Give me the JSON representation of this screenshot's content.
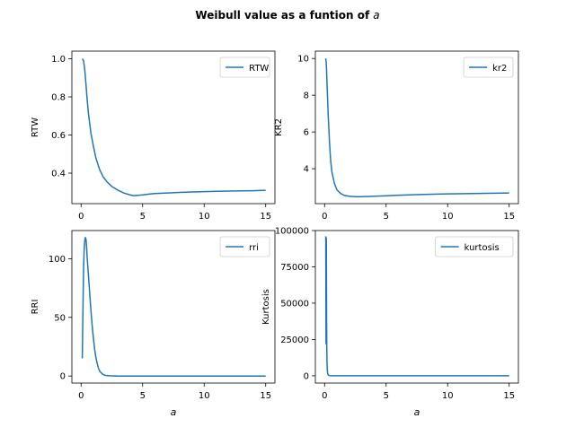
{
  "figure": {
    "title": "Weibull value as a funtion of",
    "title_var": "a",
    "series_color": "#1f77b4"
  },
  "chart_data": [
    {
      "type": "line",
      "xlabel": "",
      "ylabel": "RTW",
      "xlim": [
        -0.75,
        15.75
      ],
      "ylim": [
        0.24,
        1.04
      ],
      "xticks": [
        0,
        5,
        10,
        15
      ],
      "yticks": [
        0.4,
        0.6,
        0.8,
        1.0
      ],
      "ytick_labels": [
        "0.4",
        "0.6",
        "0.8",
        "1.0"
      ],
      "legend": "top-right",
      "grid": false,
      "series": [
        {
          "name": "RTW",
          "x": [
            0.1,
            0.2,
            0.3,
            0.4,
            0.5,
            0.6,
            0.8,
            1.0,
            1.2,
            1.5,
            1.8,
            2.1,
            2.5,
            3.0,
            3.5,
            4.0,
            4.3,
            4.6,
            5.0,
            5.5,
            6.0,
            7.0,
            8.0,
            9.0,
            10.0,
            11.0,
            12.0,
            13.0,
            14.0,
            15.0
          ],
          "y": [
            1.0,
            0.99,
            0.94,
            0.86,
            0.78,
            0.71,
            0.61,
            0.54,
            0.48,
            0.42,
            0.38,
            0.355,
            0.33,
            0.31,
            0.295,
            0.285,
            0.282,
            0.284,
            0.286,
            0.29,
            0.293,
            0.296,
            0.299,
            0.301,
            0.303,
            0.305,
            0.306,
            0.307,
            0.308,
            0.31
          ]
        }
      ]
    },
    {
      "type": "line",
      "xlabel": "",
      "ylabel": "KR2",
      "xlim": [
        -0.75,
        15.75
      ],
      "ylim": [
        2.1,
        10.4
      ],
      "xticks": [
        0,
        5,
        10,
        15
      ],
      "yticks": [
        4,
        6,
        8,
        10
      ],
      "ytick_labels": [
        "4",
        "6",
        "8",
        "10"
      ],
      "legend": "top-right",
      "grid": false,
      "series": [
        {
          "name": "kr2",
          "x": [
            0.1,
            0.15,
            0.2,
            0.3,
            0.4,
            0.5,
            0.6,
            0.8,
            1.0,
            1.3,
            1.6,
            2.0,
            2.5,
            3.0,
            4.0,
            5.0,
            6.0,
            8.0,
            10.0,
            12.0,
            15.0
          ],
          "y": [
            10.0,
            9.6,
            8.6,
            6.8,
            5.4,
            4.4,
            3.8,
            3.2,
            2.85,
            2.65,
            2.55,
            2.5,
            2.48,
            2.48,
            2.5,
            2.53,
            2.56,
            2.6,
            2.63,
            2.65,
            2.68
          ]
        }
      ]
    },
    {
      "type": "line",
      "xlabel": "a",
      "ylabel": "RRI",
      "xlim": [
        -0.75,
        15.75
      ],
      "ylim": [
        -6,
        124
      ],
      "xticks": [
        0,
        5,
        10,
        15
      ],
      "yticks": [
        0,
        50,
        100
      ],
      "ytick_labels": [
        "0",
        "50",
        "100"
      ],
      "legend": "top-right",
      "grid": false,
      "series": [
        {
          "name": "rri",
          "x": [
            0.1,
            0.15,
            0.2,
            0.25,
            0.3,
            0.35,
            0.4,
            0.45,
            0.5,
            0.6,
            0.7,
            0.8,
            0.9,
            1.0,
            1.1,
            1.2,
            1.3,
            1.4,
            1.5,
            1.6,
            1.8,
            2.0,
            2.3,
            3.0,
            5.0,
            10.0,
            15.0
          ],
          "y": [
            15,
            55,
            92,
            108,
            116,
            118,
            116,
            110,
            100,
            85,
            70,
            56,
            43,
            32,
            23,
            16,
            11,
            7,
            4.5,
            3,
            1.2,
            0.5,
            0.2,
            0,
            0,
            0,
            0
          ]
        }
      ]
    },
    {
      "type": "line",
      "xlabel": "a",
      "ylabel": "Kurtosis",
      "xlim": [
        -0.75,
        15.75
      ],
      "ylim": [
        -5000,
        100000
      ],
      "xticks": [
        0,
        5,
        10,
        15
      ],
      "yticks": [
        0,
        25000,
        50000,
        75000,
        100000
      ],
      "ytick_labels": [
        "0",
        "25000",
        "50000",
        "75000",
        "100000"
      ],
      "legend": "top-right",
      "grid": false,
      "series": [
        {
          "name": "kurtosis",
          "x": [
            0.1,
            0.12,
            0.14,
            0.16,
            0.18,
            0.2,
            0.22,
            0.25,
            0.3,
            0.4,
            0.5,
            1.0,
            2.0,
            5.0,
            10.0,
            15.0
          ],
          "y": [
            96000,
            22000,
            95000,
            40000,
            20000,
            8000,
            4000,
            1500,
            500,
            100,
            30,
            0,
            0,
            0,
            0,
            0
          ]
        }
      ]
    }
  ]
}
